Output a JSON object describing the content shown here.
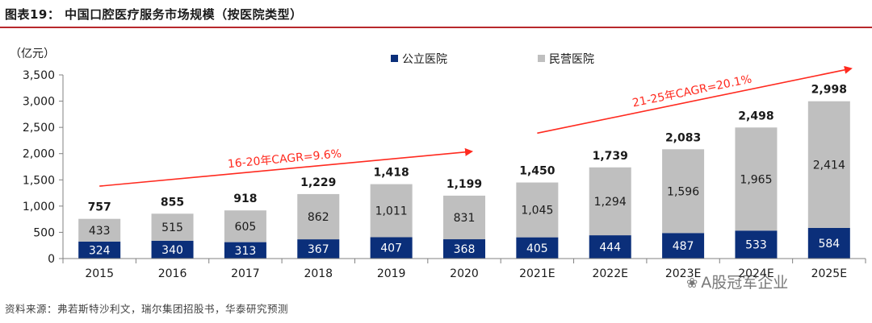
{
  "figure": {
    "title": "图表19：  中国口腔医疗服务市场规模（按医院类型）",
    "source": "资料来源：弗若斯特沙利文，瑞尔集团招股书，华泰研究预测",
    "watermark": "A股冠军企业",
    "watermark_icon": "wechat-icon"
  },
  "chart_data": {
    "type": "bar",
    "stacked": true,
    "unit_label": "（亿元）",
    "categories": [
      "2015",
      "2016",
      "2017",
      "2018",
      "2019",
      "2020",
      "2021E",
      "2022E",
      "2023E",
      "2024E",
      "2025E"
    ],
    "series": [
      {
        "name": "公立医院",
        "color": "#0b2f7a",
        "values": [
          324,
          340,
          313,
          367,
          407,
          368,
          405,
          444,
          487,
          533,
          584
        ]
      },
      {
        "name": "民营医院",
        "color": "#bfbfbf",
        "values": [
          433,
          515,
          605,
          862,
          1011,
          831,
          1045,
          1294,
          1596,
          1965,
          2414
        ]
      }
    ],
    "totals": [
      757,
      855,
      918,
      1229,
      1418,
      1199,
      1450,
      1739,
      2083,
      2498,
      2998
    ],
    "value_labels": {
      "public": [
        "324",
        "340",
        "313",
        "367",
        "407",
        "368",
        "405",
        "444",
        "487",
        "533",
        "584"
      ],
      "private": [
        "433",
        "515",
        "605",
        "862",
        "1,011",
        "831",
        "1,045",
        "1,294",
        "1,596",
        "1,965",
        "2,414"
      ],
      "totals": [
        "757",
        "855",
        "918",
        "1,229",
        "1,418",
        "1,199",
        "1,450",
        "1,739",
        "2,083",
        "2,498",
        "2,998"
      ]
    },
    "ylim": [
      0,
      3500
    ],
    "yticks": [
      0,
      500,
      1000,
      1500,
      2000,
      2500,
      3000,
      3500
    ],
    "ytick_labels": [
      "0",
      "500",
      "1,000",
      "1,500",
      "2,000",
      "2,500",
      "3,000",
      "3,500"
    ],
    "legend_position": "top",
    "annotations": [
      {
        "text": "16-20年CAGR=9.6%",
        "color": "#ff2a1f",
        "from": {
          "x": 0,
          "y": 1380
        },
        "to": {
          "x": 5.1,
          "y": 2040
        }
      },
      {
        "text": "21-25年CAGR=20.1%",
        "color": "#ff2a1f",
        "from": {
          "x": 6,
          "y": 2390
        },
        "to": {
          "x": 10.3,
          "y": 3620
        }
      }
    ]
  }
}
